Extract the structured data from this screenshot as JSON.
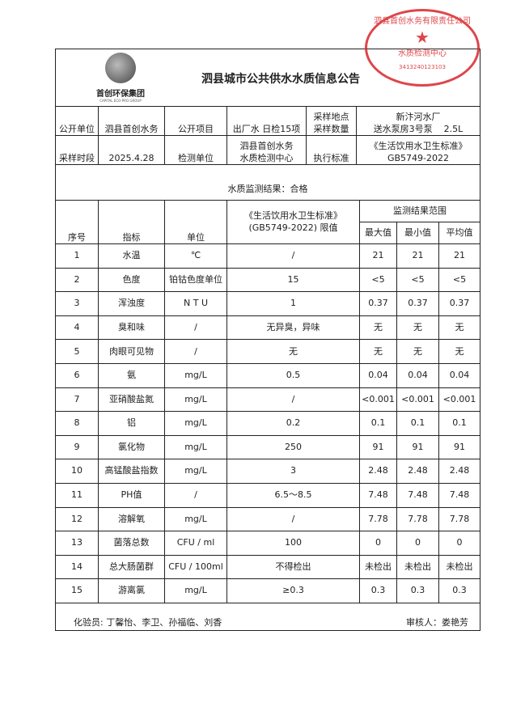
{
  "header": {
    "logo_text": "首创环保集团",
    "logo_en": "CAPITAL ECO-PRO GROUP",
    "title": "泗县城市公共供水水质信息公告"
  },
  "seal": {
    "ring": "泗县首创水务有限责任公司",
    "dept": "水质检测中心",
    "code": "3413240123103"
  },
  "info": {
    "unit_label": "公开单位",
    "unit": "泗县首创水务",
    "item_label": "公开项目",
    "item": "出厂水 日检15项",
    "site_label_1": "采样地点",
    "site_label_2": "采样数量",
    "site_1": "新汴河水厂",
    "site_2": "送水泵房3号泵    2.5L",
    "time_label": "采样时段",
    "time": "2025.4.28",
    "lab_label": "检测单位",
    "lab_1": "泗县首创水务",
    "lab_2": "水质检测中心",
    "std_label": "执行标准",
    "std_1": "《生活饮用水卫生标准》",
    "std_2": "GB5749-2022"
  },
  "result_title": "水质监测结果：合格",
  "columns": {
    "no": "序号",
    "index": "指标",
    "unit": "单位",
    "limit_1": "《生活饮用水卫生标准》",
    "limit_2": "(GB5749-2022) 限值",
    "range": "监测结果范围",
    "max": "最大值",
    "min": "最小值",
    "avg": "平均值"
  },
  "rows": [
    [
      "1",
      "水温",
      "℃",
      "/",
      "21",
      "21",
      "21"
    ],
    [
      "2",
      "色度",
      "铂钴色度单位",
      "15",
      "<5",
      "<5",
      "<5"
    ],
    [
      "3",
      "浑浊度",
      "N T U",
      "1",
      "0.37",
      "0.37",
      "0.37"
    ],
    [
      "4",
      "臭和味",
      "/",
      "无异臭，异味",
      "无",
      "无",
      "无"
    ],
    [
      "5",
      "肉眼可见物",
      "/",
      "无",
      "无",
      "无",
      "无"
    ],
    [
      "6",
      "氨",
      "mg/L",
      "0.5",
      "0.04",
      "0.04",
      "0.04"
    ],
    [
      "7",
      "亚硝酸盐氮",
      "mg/L",
      "/",
      "<0.001",
      "<0.001",
      "<0.001"
    ],
    [
      "8",
      "铝",
      "mg/L",
      "0.2",
      "0.1",
      "0.1",
      "0.1"
    ],
    [
      "9",
      "氯化物",
      "mg/L",
      "250",
      "91",
      "91",
      "91"
    ],
    [
      "10",
      "高锰酸盐指数",
      "mg/L",
      "3",
      "2.48",
      "2.48",
      "2.48"
    ],
    [
      "11",
      "PH值",
      "/",
      "6.5～8.5",
      "7.48",
      "7.48",
      "7.48"
    ],
    [
      "12",
      "溶解氧",
      "mg/L",
      "/",
      "7.78",
      "7.78",
      "7.78"
    ],
    [
      "13",
      "菌落总数",
      "CFU / ml",
      "100",
      "0",
      "0",
      "0"
    ],
    [
      "14",
      "总大肠菌群",
      "CFU / 100ml",
      "不得检出",
      "未检出",
      "未检出",
      "未检出"
    ],
    [
      "15",
      "游离氯",
      "mg/L",
      "≥0.3",
      "0.3",
      "0.3",
      "0.3"
    ]
  ],
  "footer": {
    "testers": "化验员: 丁馨怡、李卫、孙福临、刘香",
    "reviewer": "审核人：娄艳芳"
  }
}
